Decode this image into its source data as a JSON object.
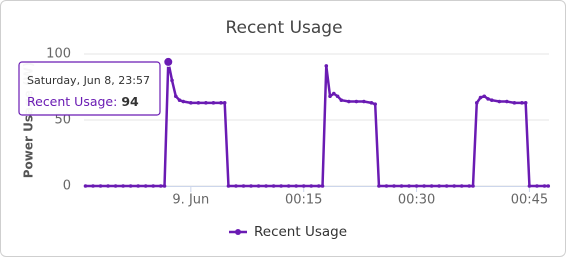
{
  "chart_data": {
    "type": "line",
    "title": "Recent Usage",
    "y_label": "Power Usage (W)",
    "x": [
      -14,
      -13,
      -12,
      -11,
      -10,
      -9,
      -8,
      -7,
      -6,
      -5,
      -4,
      -3.5,
      -3,
      -2.5,
      -2,
      -1.5,
      -1,
      0,
      1,
      2,
      3,
      4,
      4.5,
      5,
      6,
      7,
      8,
      9,
      10,
      11,
      12,
      13,
      14,
      15,
      16,
      17,
      17.5,
      18,
      18.5,
      19,
      19.5,
      20,
      21,
      22,
      23,
      24,
      24.5,
      25,
      26,
      27,
      28,
      29,
      30,
      31,
      32,
      33,
      34,
      35,
      36,
      37,
      37.5,
      38,
      38.5,
      39,
      39.5,
      40,
      41,
      42,
      43,
      44,
      44.5,
      45,
      46,
      47,
      47.5
    ],
    "series": [
      {
        "name": "Recent Usage",
        "color": "#6a1bb3",
        "values": [
          0,
          0,
          0,
          0,
          0,
          0,
          0,
          0,
          0,
          0,
          0,
          0,
          94,
          80,
          68,
          65,
          64,
          63,
          63,
          63,
          63,
          63,
          63,
          0,
          0,
          0,
          0,
          0,
          0,
          0,
          0,
          0,
          0,
          0,
          0,
          0,
          0,
          91,
          68,
          70,
          68,
          65,
          64,
          64,
          64,
          63,
          62,
          0,
          0,
          0,
          0,
          0,
          0,
          0,
          0,
          0,
          0,
          0,
          0,
          0,
          0,
          63,
          67,
          68,
          66,
          65,
          64,
          64,
          63,
          63,
          63,
          0,
          0,
          0,
          0
        ]
      }
    ],
    "xlim": [
      -14.2,
      47.6
    ],
    "xticks": [
      {
        "value": 0,
        "label": "9. Jun"
      },
      {
        "value": 15,
        "label": "00:15"
      },
      {
        "value": 30,
        "label": "00:30"
      },
      {
        "value": 45,
        "label": "00:45"
      }
    ],
    "ylim": [
      0,
      100
    ],
    "yticks": [
      0,
      50,
      100
    ],
    "grid": true,
    "legend": "bottom",
    "tooltip": {
      "index": 12,
      "title": "Saturday, Jun 8, 23:57",
      "label": "Recent Usage:",
      "value": 94
    }
  }
}
